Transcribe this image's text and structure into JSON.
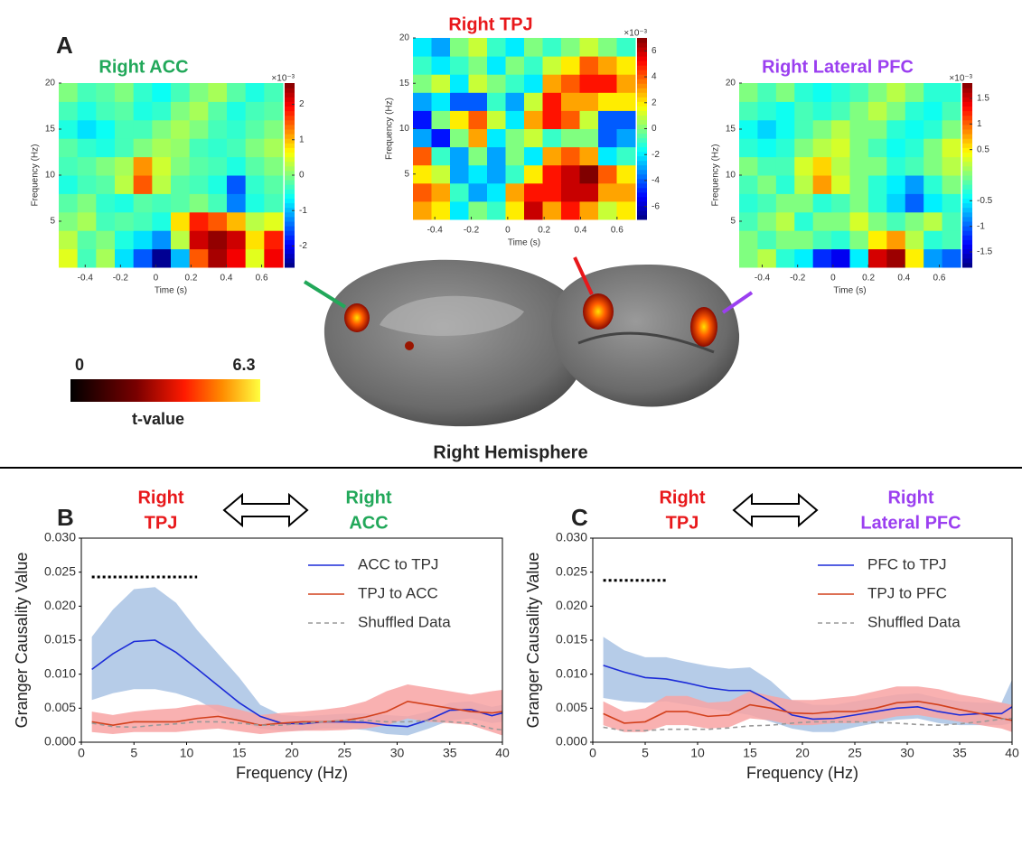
{
  "figure": {
    "panel_labels": [
      "A",
      "B",
      "C"
    ],
    "section_title": "Right Hemisphere",
    "brain_colorbar": {
      "min": 0,
      "max": 6.3,
      "label": "t-value"
    }
  },
  "chart_data": [
    {
      "type": "heatmap",
      "title": "Right ACC",
      "title_color": "#22a85a",
      "xlabel": "Time (s)",
      "ylabel": "Frequency (Hz)",
      "xlim": [
        -0.55,
        0.72
      ],
      "ylim": [
        0,
        20
      ],
      "xticks": [
        -0.4,
        -0.2,
        0,
        0.2,
        0.4,
        0.6
      ],
      "yticks": [
        5,
        10,
        15,
        20
      ],
      "zlim": [
        -2.6,
        2.6
      ],
      "zticks": [
        -2,
        -1,
        0,
        1,
        2
      ],
      "colorbar_label": "×10⁻³",
      "colormap": "jet",
      "z": [
        [
          0.5,
          -0.3,
          0.2,
          -0.8,
          -1.5,
          -2.5,
          -1,
          1.5,
          2.4,
          2,
          0.5,
          2
        ],
        [
          0.3,
          -0.2,
          0,
          -0.5,
          -0.8,
          -1.2,
          0.3,
          2.2,
          2.5,
          2.2,
          0.8,
          1.8
        ],
        [
          0,
          0.2,
          -0.3,
          -0.2,
          -0.3,
          -0.5,
          0.8,
          1.8,
          1.5,
          1,
          0.3,
          0.5
        ],
        [
          -0.2,
          0,
          -0.4,
          -0.5,
          -0.2,
          -0.3,
          -0.2,
          0,
          -0.3,
          -1.3,
          -0.5,
          -0.3
        ],
        [
          -0.5,
          -0.3,
          -0.2,
          0.3,
          1.5,
          0.3,
          -0.2,
          -0.3,
          -0.5,
          -1.5,
          -0.4,
          -0.2
        ],
        [
          -0.3,
          -0.2,
          0,
          0.2,
          1.2,
          0.4,
          0,
          -0.2,
          -0.3,
          -0.5,
          -0.2,
          0
        ],
        [
          -0.2,
          -0.4,
          -0.5,
          -0.3,
          0,
          0.2,
          0.1,
          -0.3,
          -0.4,
          -0.3,
          0,
          0.2
        ],
        [
          -0.5,
          -0.8,
          -0.6,
          -0.3,
          -0.3,
          0,
          0.2,
          0,
          -0.3,
          -0.4,
          -0.2,
          0
        ],
        [
          -0.3,
          -0.5,
          -0.3,
          -0.2,
          -0.5,
          -0.4,
          0,
          0.2,
          -0.2,
          -0.5,
          -0.3,
          -0.2
        ],
        [
          0,
          -0.3,
          -0.2,
          0,
          -0.4,
          -0.6,
          -0.3,
          0,
          0.2,
          -0.2,
          -0.5,
          -0.3
        ]
      ]
    },
    {
      "type": "heatmap",
      "title": "Right TPJ",
      "title_color": "#e8181b",
      "xlabel": "Time (s)",
      "ylabel": "Frequency (Hz)",
      "xlim": [
        -0.52,
        0.7
      ],
      "ylim": [
        0,
        20
      ],
      "xticks": [
        -0.4,
        -0.2,
        0,
        0.2,
        0.4,
        0.6
      ],
      "yticks": [
        5,
        10,
        15,
        20
      ],
      "zlim": [
        -7,
        7
      ],
      "zticks": [
        -6,
        -4,
        -2,
        0,
        2,
        4,
        6
      ],
      "colorbar_label": "×10⁻³",
      "colormap": "jet",
      "z": [
        [
          3,
          2,
          -2,
          0,
          -1,
          2,
          6,
          3,
          5,
          3,
          1,
          2
        ],
        [
          4,
          3,
          -1,
          -3,
          -2,
          3,
          5,
          5,
          6,
          6,
          3,
          3
        ],
        [
          2,
          1,
          -3,
          -2,
          -3,
          -1,
          2,
          5,
          6,
          7,
          4,
          2
        ],
        [
          4,
          -1,
          -3,
          0,
          -3,
          0,
          -2,
          3,
          4,
          3,
          -2,
          -1
        ],
        [
          -3,
          -5,
          0,
          3,
          -2,
          0,
          1,
          -1,
          0,
          0,
          -4,
          -3
        ],
        [
          -5,
          0,
          2,
          4,
          1,
          -2,
          3,
          5,
          4,
          1,
          -4,
          -4
        ],
        [
          -3,
          -2,
          -4,
          -4,
          -1,
          -3,
          1,
          5,
          3,
          3,
          2,
          2
        ],
        [
          0,
          1,
          -2,
          1,
          0,
          -1,
          -2,
          3,
          4,
          5,
          5,
          3
        ],
        [
          -1,
          -2,
          -1,
          0,
          -2,
          0,
          -1,
          1,
          2,
          4,
          3,
          2
        ],
        [
          -2,
          -3,
          0,
          1,
          -1,
          -2,
          0,
          -1,
          0,
          1,
          0,
          -1
        ]
      ]
    },
    {
      "type": "heatmap",
      "title": "Right Lateral PFC",
      "title_color": "#9b3ff0",
      "xlabel": "Time (s)",
      "ylabel": "Frequency (Hz)",
      "xlim": [
        -0.53,
        0.72
      ],
      "ylim": [
        0,
        20
      ],
      "xticks": [
        -0.4,
        -0.2,
        0,
        0.2,
        0.4,
        0.6
      ],
      "yticks": [
        5,
        10,
        15,
        20
      ],
      "zlim": [
        -1.8,
        1.8
      ],
      "zticks": [
        -1.5,
        -1,
        -0.5,
        0.5,
        1,
        1.5
      ],
      "colorbar_label": "×10⁻³",
      "colormap": "jet",
      "z": [
        [
          0,
          0.2,
          -0.3,
          -0.5,
          -1.2,
          -1.4,
          -0.5,
          1.5,
          1.7,
          0.5,
          -0.8,
          -1
        ],
        [
          0,
          -0.2,
          0,
          0,
          -0.2,
          -0.3,
          0,
          0.5,
          0.8,
          0.2,
          -0.3,
          -0.2
        ],
        [
          -0.2,
          0,
          0.2,
          -0.3,
          0,
          0,
          0.3,
          0,
          -0.2,
          0,
          0.2,
          -0.2
        ],
        [
          -0.3,
          -0.2,
          0,
          0,
          -0.3,
          -0.2,
          0,
          -0.3,
          -0.6,
          -1,
          -0.5,
          -0.3
        ],
        [
          -0.2,
          0,
          -0.3,
          0.2,
          0.8,
          0.3,
          0,
          -0.3,
          -0.5,
          -0.8,
          -0.3,
          0
        ],
        [
          0,
          -0.2,
          -0.2,
          0.3,
          0.6,
          0.2,
          0,
          0,
          -0.3,
          -0.2,
          0,
          0.2
        ],
        [
          -0.3,
          -0.4,
          -0.3,
          0,
          0.2,
          0.3,
          0,
          -0.2,
          -0.4,
          -0.3,
          0,
          0.3
        ],
        [
          -0.4,
          -0.6,
          -0.4,
          -0.2,
          0,
          0.2,
          0,
          0,
          -0.3,
          -0.4,
          -0.3,
          0
        ],
        [
          -0.2,
          -0.3,
          -0.4,
          -0.2,
          -0.3,
          -0.2,
          0,
          0.2,
          0,
          -0.3,
          -0.4,
          -0.2
        ],
        [
          0,
          -0.2,
          0,
          -0.3,
          -0.4,
          -0.3,
          -0.2,
          0,
          0.2,
          0,
          -0.3,
          -0.3
        ]
      ]
    },
    {
      "type": "line",
      "left_label": [
        "Right",
        "TPJ"
      ],
      "left_color": "#e8181b",
      "right_label": [
        "Right",
        "ACC"
      ],
      "right_color": "#22a85a",
      "xlabel": "Frequency (Hz)",
      "ylabel": "Granger Causality Value",
      "xlim": [
        0,
        40
      ],
      "ylim": [
        0,
        0.03
      ],
      "xticks": [
        0,
        5,
        10,
        15,
        20,
        25,
        30,
        35,
        40
      ],
      "yticks": [
        {
          "value": 0,
          "label": "0.000"
        },
        {
          "value": 0.005,
          "label": "0.005"
        },
        {
          "value": 0.01,
          "label": "0.010"
        },
        {
          "value": 0.015,
          "label": "0.015"
        },
        {
          "value": 0.02,
          "label": "0.020"
        },
        {
          "value": 0.025,
          "label": "0.025"
        },
        {
          "value": 0.03,
          "label": "0.030"
        }
      ],
      "legend": "upper right",
      "significance": {
        "x": [
          1,
          11
        ],
        "y": 0.0243
      },
      "x": [
        1,
        3,
        5,
        7,
        9,
        11,
        13,
        15,
        17,
        19,
        21,
        23,
        25,
        27,
        29,
        31,
        33,
        35,
        37,
        39,
        40
      ],
      "series": [
        {
          "name": "ACC to TPJ",
          "color": "#1c2bd8",
          "band_color": "#a9c3e4",
          "values": [
            0.0107,
            0.013,
            0.0148,
            0.015,
            0.0132,
            0.0108,
            0.0083,
            0.0058,
            0.0038,
            0.0028,
            0.0027,
            0.003,
            0.003,
            0.0029,
            0.0025,
            0.0023,
            0.0033,
            0.0047,
            0.0048,
            0.0039,
            0.0043
          ],
          "upper": [
            0.0155,
            0.0195,
            0.0225,
            0.0228,
            0.0205,
            0.0165,
            0.013,
            0.0095,
            0.0055,
            0.004,
            0.0038,
            0.004,
            0.0042,
            0.0042,
            0.004,
            0.0038,
            0.0045,
            0.0058,
            0.006,
            0.0052,
            0.0055
          ],
          "lower": [
            0.0062,
            0.0072,
            0.0078,
            0.0078,
            0.0072,
            0.0062,
            0.0045,
            0.003,
            0.002,
            0.0017,
            0.0017,
            0.002,
            0.002,
            0.0018,
            0.0012,
            0.001,
            0.002,
            0.0032,
            0.0035,
            0.0028,
            0.003
          ]
        },
        {
          "name": "TPJ to ACC",
          "color": "#d2401c",
          "band_color": "#f8a3a3",
          "values": [
            0.003,
            0.0025,
            0.003,
            0.003,
            0.003,
            0.0035,
            0.0038,
            0.0032,
            0.0025,
            0.0028,
            0.003,
            0.003,
            0.0032,
            0.0037,
            0.0045,
            0.006,
            0.0055,
            0.005,
            0.0045,
            0.0043,
            0.0045
          ],
          "upper": [
            0.0045,
            0.004,
            0.0045,
            0.0048,
            0.005,
            0.0055,
            0.0055,
            0.0048,
            0.004,
            0.0043,
            0.0045,
            0.0048,
            0.0052,
            0.006,
            0.0075,
            0.0085,
            0.008,
            0.0075,
            0.007,
            0.0075,
            0.0077
          ],
          "lower": [
            0.0015,
            0.0012,
            0.0015,
            0.0015,
            0.0015,
            0.0018,
            0.002,
            0.0016,
            0.0012,
            0.0015,
            0.0017,
            0.0017,
            0.0018,
            0.002,
            0.0025,
            0.0035,
            0.003,
            0.0028,
            0.0025,
            0.0015,
            0.001
          ]
        },
        {
          "name": "Shuffled Data",
          "color": "#999999",
          "dash": true,
          "values": [
            0.0028,
            0.0023,
            0.0022,
            0.0025,
            0.0027,
            0.003,
            0.003,
            0.0028,
            0.0025,
            0.0025,
            0.0028,
            0.003,
            0.0032,
            0.0032,
            0.003,
            0.003,
            0.0032,
            0.003,
            0.0028,
            0.002,
            0.0018
          ]
        }
      ]
    },
    {
      "type": "line",
      "left_label": [
        "Right",
        "TPJ"
      ],
      "left_color": "#e8181b",
      "right_label": [
        "Right",
        "Lateral PFC"
      ],
      "right_color": "#9b3ff0",
      "xlabel": "Frequency (Hz)",
      "ylabel": "Granger Causality Value",
      "xlim": [
        0,
        40
      ],
      "ylim": [
        0,
        0.03
      ],
      "xticks": [
        0,
        5,
        10,
        15,
        20,
        25,
        30,
        35,
        40
      ],
      "yticks": [
        {
          "value": 0,
          "label": "0.000"
        },
        {
          "value": 0.005,
          "label": "0.005"
        },
        {
          "value": 0.01,
          "label": "0.010"
        },
        {
          "value": 0.015,
          "label": "0.015"
        },
        {
          "value": 0.02,
          "label": "0.020"
        },
        {
          "value": 0.025,
          "label": "0.025"
        },
        {
          "value": 0.03,
          "label": "0.030"
        }
      ],
      "legend": "upper right",
      "significance": {
        "x": [
          1,
          7
        ],
        "y": 0.0238
      },
      "x": [
        1,
        3,
        5,
        7,
        9,
        11,
        13,
        15,
        17,
        19,
        21,
        23,
        25,
        27,
        29,
        31,
        33,
        35,
        37,
        39,
        40
      ],
      "series": [
        {
          "name": "PFC to TPJ",
          "color": "#1c2bd8",
          "band_color": "#a9c3e4",
          "values": [
            0.0113,
            0.0103,
            0.0095,
            0.0093,
            0.0087,
            0.008,
            0.0076,
            0.0076,
            0.006,
            0.004,
            0.0034,
            0.0035,
            0.004,
            0.0045,
            0.005,
            0.0052,
            0.0045,
            0.004,
            0.0042,
            0.0042,
            0.0052
          ],
          "upper": [
            0.0155,
            0.0135,
            0.0125,
            0.0125,
            0.0118,
            0.0112,
            0.0108,
            0.011,
            0.009,
            0.0062,
            0.0055,
            0.0055,
            0.006,
            0.0065,
            0.007,
            0.0072,
            0.0065,
            0.006,
            0.0058,
            0.0058,
            0.0092
          ],
          "lower": [
            0.0065,
            0.006,
            0.0058,
            0.006,
            0.0055,
            0.005,
            0.0045,
            0.004,
            0.003,
            0.002,
            0.0015,
            0.0015,
            0.0022,
            0.0028,
            0.0033,
            0.0035,
            0.0028,
            0.0025,
            0.0025,
            0.0025,
            0.0028
          ]
        },
        {
          "name": "TPJ to PFC",
          "color": "#d2401c",
          "band_color": "#f8a3a3",
          "values": [
            0.0042,
            0.0028,
            0.003,
            0.0045,
            0.0045,
            0.0038,
            0.004,
            0.0055,
            0.005,
            0.0043,
            0.0042,
            0.0045,
            0.0045,
            0.005,
            0.0058,
            0.006,
            0.0055,
            0.0048,
            0.0042,
            0.0035,
            0.0032
          ],
          "upper": [
            0.006,
            0.0045,
            0.005,
            0.0068,
            0.0068,
            0.0058,
            0.006,
            0.0075,
            0.0068,
            0.0062,
            0.0062,
            0.0065,
            0.0068,
            0.0075,
            0.0082,
            0.0082,
            0.0078,
            0.007,
            0.0065,
            0.0058,
            0.0055
          ],
          "lower": [
            0.0025,
            0.0015,
            0.0015,
            0.0025,
            0.0025,
            0.002,
            0.0022,
            0.0035,
            0.0032,
            0.0025,
            0.0025,
            0.0028,
            0.0028,
            0.0032,
            0.0038,
            0.004,
            0.0035,
            0.003,
            0.0025,
            0.002,
            0.0015
          ]
        },
        {
          "name": "Shuffled Data",
          "color": "#999999",
          "dash": true,
          "values": [
            0.0022,
            0.0017,
            0.0017,
            0.0019,
            0.0019,
            0.0019,
            0.0021,
            0.0024,
            0.0025,
            0.0028,
            0.003,
            0.003,
            0.003,
            0.0029,
            0.0028,
            0.0026,
            0.0025,
            0.0027,
            0.003,
            0.0034,
            0.0035
          ]
        }
      ]
    }
  ]
}
